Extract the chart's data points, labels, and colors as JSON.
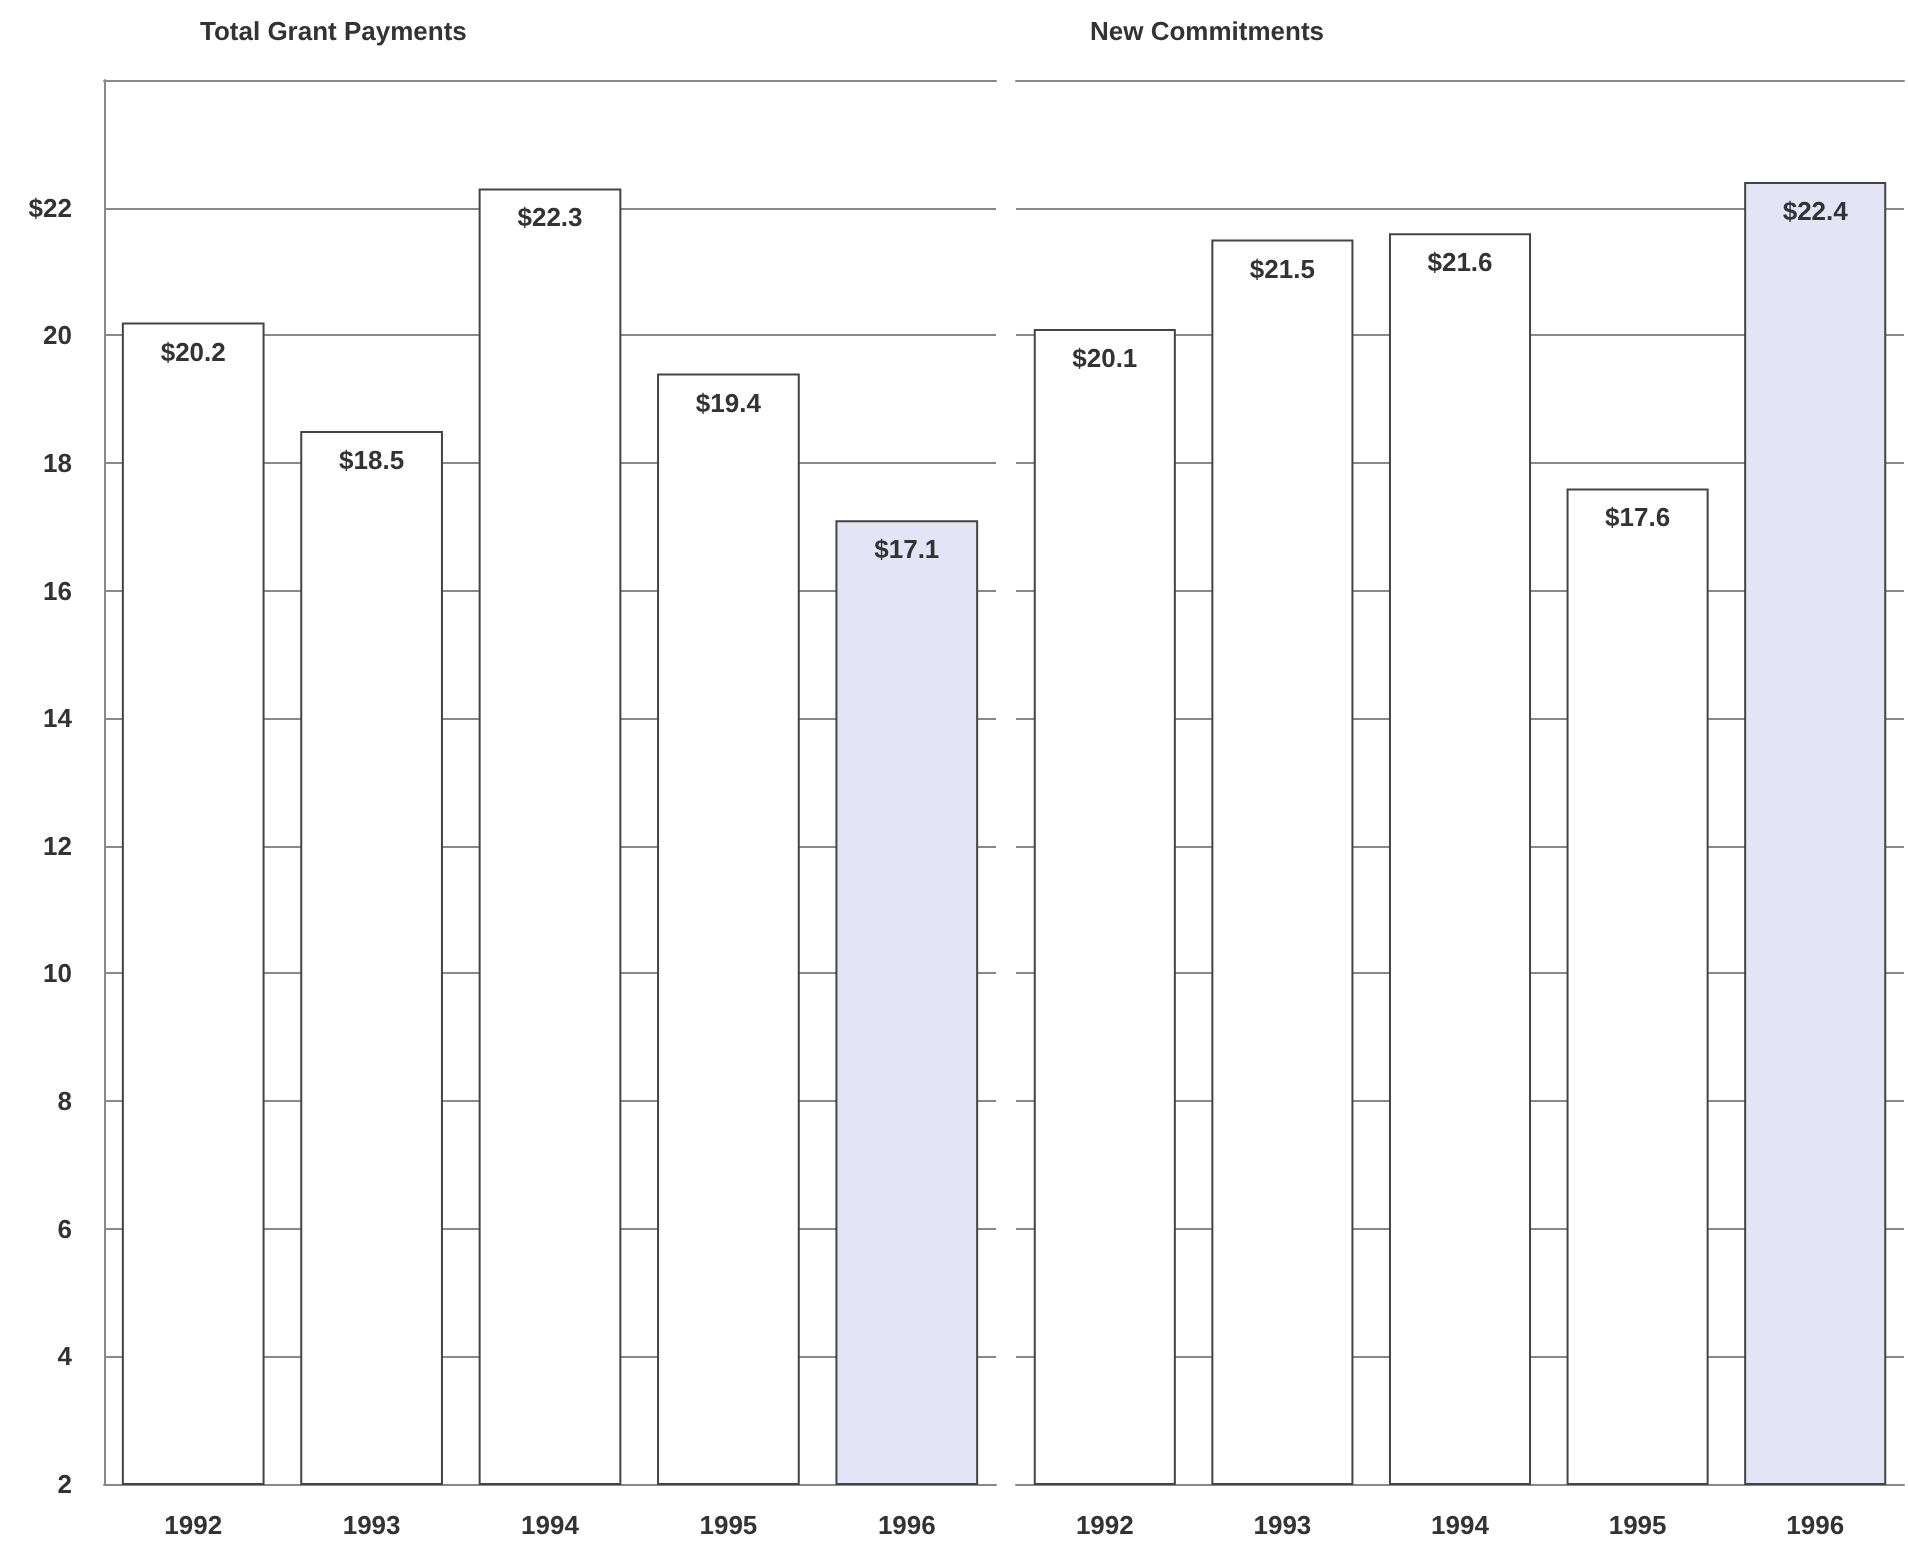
{
  "chart_data": [
    {
      "type": "bar",
      "title": "Total Grant Payments",
      "categories": [
        "1992",
        "1993",
        "1994",
        "1995",
        "1996"
      ],
      "values": [
        20.2,
        18.5,
        22.3,
        19.4,
        17.1
      ],
      "colors": [
        "#ffffff",
        "#ffffff",
        "#ffffff",
        "#ffffff",
        "#e4e4f6"
      ],
      "value_labels": [
        "$20.2",
        "$18.5",
        "$22.3",
        "$19.4",
        "$17.1"
      ],
      "ylim": [
        2,
        24
      ],
      "yticks": [
        2,
        4,
        6,
        8,
        10,
        12,
        14,
        16,
        18,
        20,
        {
          "value": 22,
          "label": "$22"
        }
      ],
      "grid": "y"
    },
    {
      "type": "bar",
      "title": "New Commitments",
      "categories": [
        "1992",
        "1993",
        "1994",
        "1995",
        "1996"
      ],
      "values": [
        20.1,
        21.5,
        21.6,
        17.6,
        22.4
      ],
      "colors": [
        "#ffffff",
        "#ffffff",
        "#ffffff",
        "#ffffff",
        "#e4e4f6"
      ],
      "value_labels": [
        "$20.1",
        "$21.5",
        "$21.6",
        "$17.6",
        "$22.4"
      ],
      "ylim": [
        2,
        24
      ],
      "yticks": [
        2,
        4,
        6,
        8,
        10,
        12,
        14,
        16,
        18,
        20,
        22
      ],
      "grid": "y",
      "tick_labels": "x"
    }
  ]
}
